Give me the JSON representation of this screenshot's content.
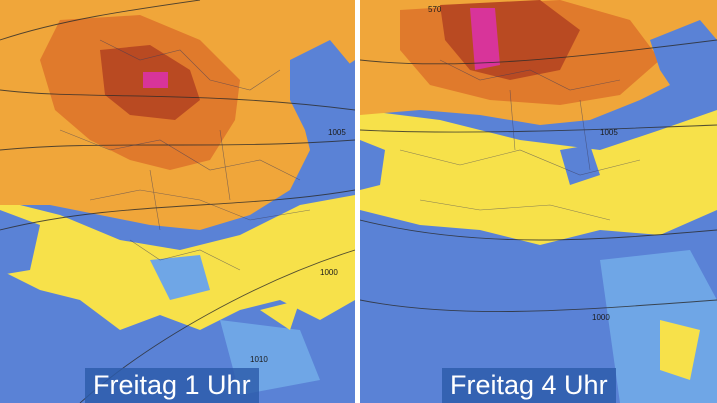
{
  "panels": [
    {
      "caption": "Freitag 1 Uhr",
      "isobar_labels": [
        "1005",
        "1000",
        "1010"
      ]
    },
    {
      "caption": "Freitag 4 Uhr",
      "isobar_labels": [
        "570",
        "1005",
        "1000"
      ]
    }
  ],
  "legend_colors": {
    "very_warm": "#d8349a",
    "hot": "#b94a22",
    "warm": "#e07a2c",
    "mild": "#f0a63a",
    "moderate": "#f7e14a",
    "cool": "#5a82d6",
    "cold": "#6fa6e6"
  }
}
